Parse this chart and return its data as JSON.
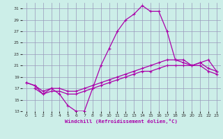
{
  "title": "Windchill (Refroidissement éolien,°C)",
  "bg_color": "#cceee8",
  "grid_color": "#9999bb",
  "line_color": "#aa00aa",
  "xlim": [
    -0.5,
    23.5
  ],
  "ylim": [
    13,
    32
  ],
  "yticks": [
    13,
    15,
    17,
    19,
    21,
    23,
    25,
    27,
    29,
    31
  ],
  "xticks": [
    0,
    1,
    2,
    3,
    4,
    5,
    6,
    7,
    8,
    9,
    10,
    11,
    12,
    13,
    14,
    15,
    16,
    17,
    18,
    19,
    20,
    21,
    22,
    23
  ],
  "series": [
    {
      "x": [
        1,
        2,
        3,
        4,
        5,
        6,
        7,
        8,
        9,
        10,
        11,
        12,
        13,
        14,
        15,
        16,
        17,
        18,
        19,
        20,
        21,
        22,
        23
      ],
      "y": [
        17,
        16,
        17,
        16,
        14,
        13,
        13,
        17,
        21,
        24,
        27,
        29,
        30,
        31.5,
        30.5,
        30.5,
        27,
        22,
        21.5,
        21,
        21.5,
        22,
        20
      ]
    },
    {
      "x": [
        0,
        1,
        2,
        3,
        4,
        5,
        6,
        7,
        8,
        9,
        10,
        11,
        12,
        13,
        14,
        15,
        16,
        17,
        18,
        19,
        20,
        21,
        22,
        23
      ],
      "y": [
        18,
        17.5,
        16.5,
        17,
        17,
        16.5,
        16.5,
        17,
        17.5,
        18,
        18.5,
        19,
        19.5,
        20,
        20.5,
        21,
        21.5,
        22,
        22,
        22,
        21,
        21.5,
        20.5,
        20
      ]
    },
    {
      "x": [
        0,
        1,
        2,
        3,
        4,
        5,
        6,
        7,
        8,
        9,
        10,
        11,
        12,
        13,
        14,
        15,
        16,
        17,
        18,
        19,
        20,
        21,
        22,
        23
      ],
      "y": [
        18,
        17.5,
        16,
        16.5,
        16.5,
        16,
        16,
        16.5,
        17,
        17.5,
        18,
        18.5,
        19,
        19.5,
        20,
        20,
        20.5,
        21,
        21,
        21,
        21,
        21,
        20,
        19.5
      ]
    }
  ]
}
